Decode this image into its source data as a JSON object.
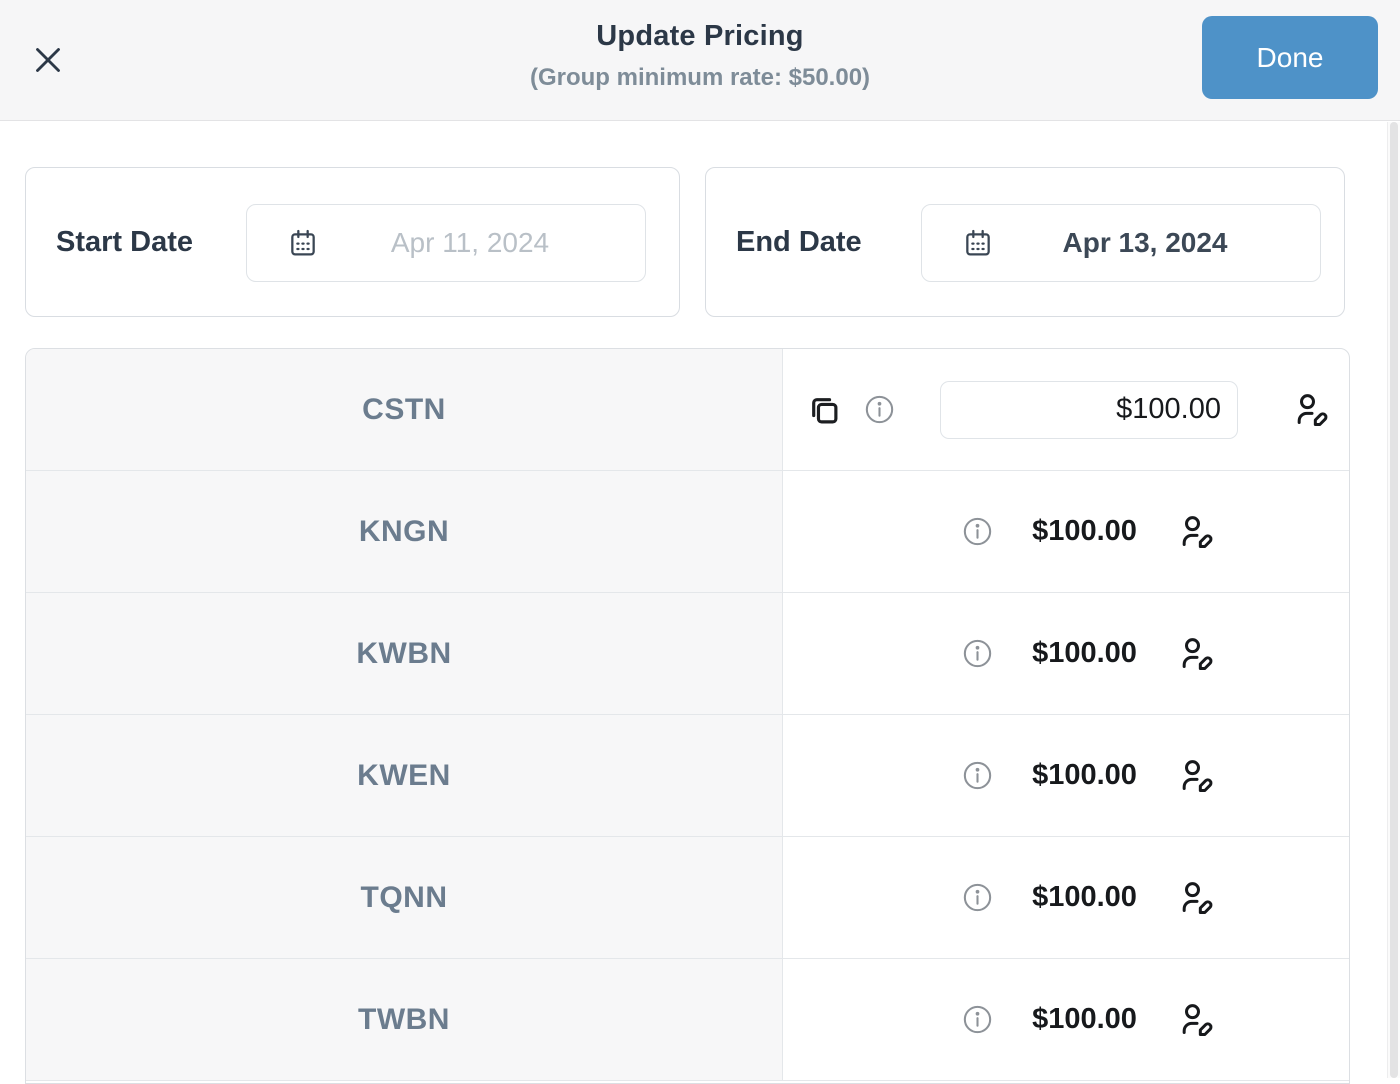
{
  "modal": {
    "title": "Update Pricing",
    "subtitle": "(Group minimum rate: $50.00)",
    "done_button": "Done"
  },
  "filters": {
    "start_date": {
      "label": "Start Date",
      "placeholder": "Apr 11, 2024"
    },
    "end_date": {
      "label": "End Date",
      "value": "Apr 13, 2024"
    }
  },
  "pricing_table": {
    "rows": [
      {
        "code": "CSTN",
        "price": "$100.00",
        "has_input": true,
        "has_copy_icon": true
      },
      {
        "code": "KNGN",
        "price": "$100.00",
        "has_input": false,
        "has_copy_icon": false
      },
      {
        "code": "KWBN",
        "price": "$100.00",
        "has_input": false,
        "has_copy_icon": false
      },
      {
        "code": "KWEN",
        "price": "$100.00",
        "has_input": false,
        "has_copy_icon": false
      },
      {
        "code": "TQNN",
        "price": "$100.00",
        "has_input": false,
        "has_copy_icon": false
      },
      {
        "code": "TWBN",
        "price": "$100.00",
        "has_input": false,
        "has_copy_icon": false
      }
    ]
  },
  "icons": {
    "close": "x-icon",
    "calendar": "calendar-icon",
    "copy": "copy-icon",
    "info": "info-icon",
    "edit": "user-edit-icon"
  },
  "colors": {
    "accent": "#4E92C8",
    "header_bg": "#F6F6F7",
    "row_label": "#6B7C8E",
    "left_column_bg": "#F7F7F8"
  }
}
